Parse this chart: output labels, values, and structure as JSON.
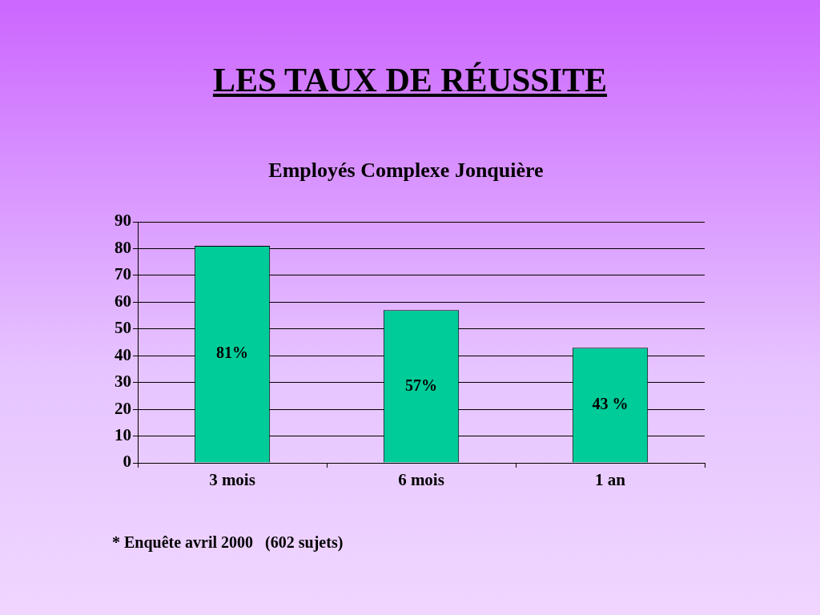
{
  "chart_data": {
    "type": "bar",
    "title": "LES TAUX DE RÉUSSITE",
    "subtitle": "Employés Complexe Jonquière",
    "categories": [
      "3 mois",
      "6 mois",
      "1 an"
    ],
    "values": [
      81,
      57,
      43
    ],
    "color": "#00cc99",
    "value_labels": [
      "81%",
      "57%",
      "43 %"
    ],
    "ylim": [
      0,
      90
    ],
    "yticks": [
      0,
      10,
      20,
      30,
      40,
      50,
      60,
      70,
      80,
      90
    ],
    "grid": "y",
    "annotations": [
      "* Enquête avril 2000   (602 sujets)"
    ]
  }
}
